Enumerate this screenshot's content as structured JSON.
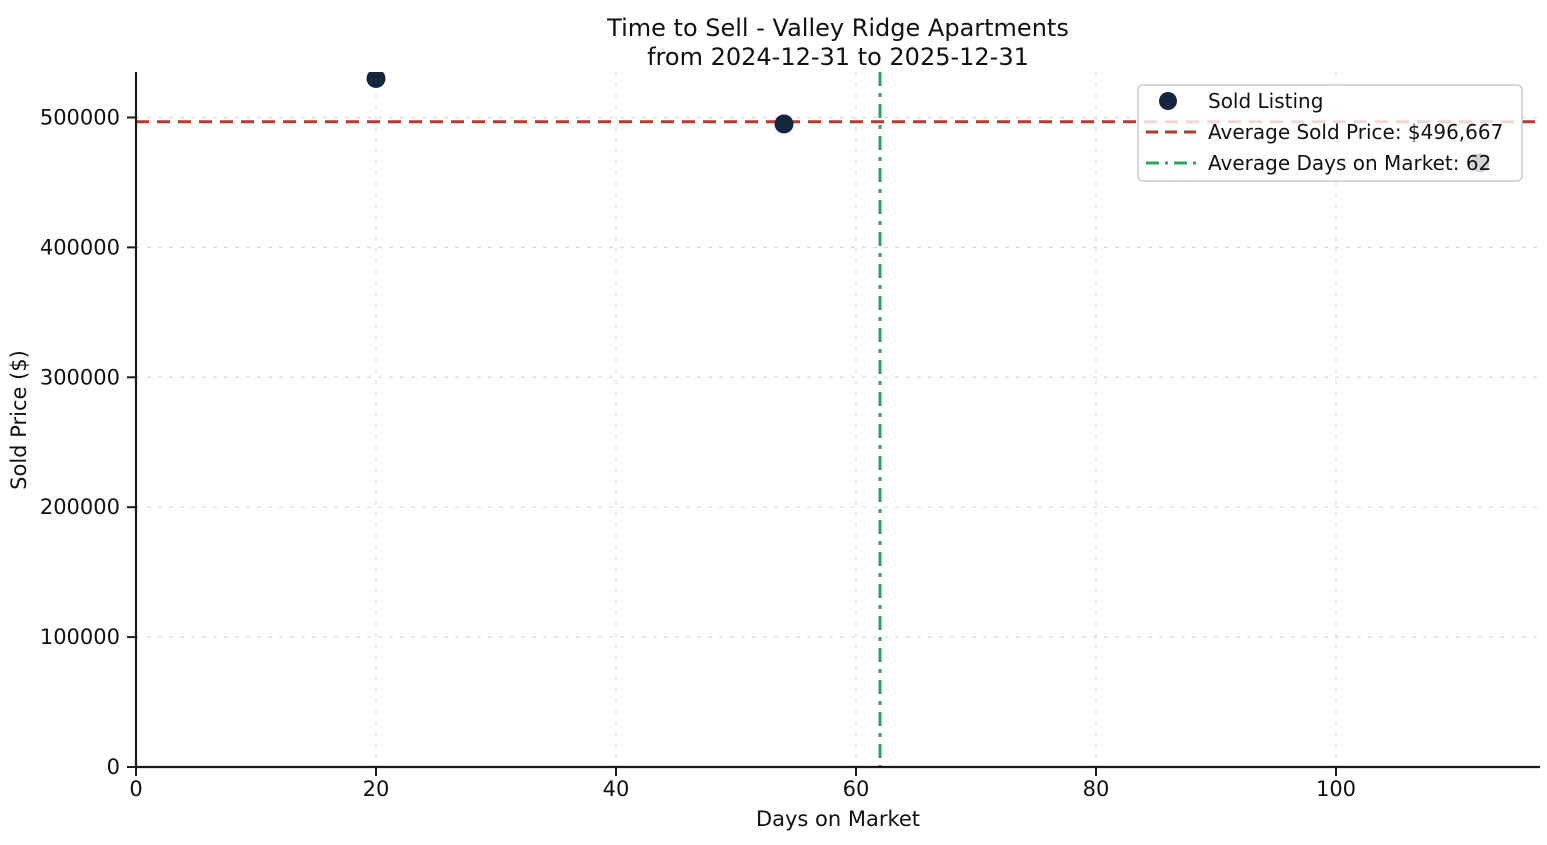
{
  "figure": {
    "title_line1": "Time to Sell - Valley Ridge Apartments",
    "title_line2": "from 2024-12-31 to 2025-12-31"
  },
  "chart_data": {
    "type": "scatter",
    "title": "Time to Sell - Valley Ridge Apartments\nfrom 2024-12-31 to 2025-12-31",
    "xlabel": "Days on Market",
    "ylabel": "Sold Price ($)",
    "xlim": [
      0,
      117
    ],
    "ylim": [
      0,
      535000
    ],
    "xticks": [
      0,
      20,
      40,
      60,
      80,
      100
    ],
    "yticks": [
      0,
      100000,
      200000,
      300000,
      400000,
      500000
    ],
    "grid": true,
    "grid_style": "dashed",
    "legend_position": "upper right",
    "scatter_series": {
      "name": "Sold Listing",
      "color": "#16253e",
      "marker": "circle",
      "points": [
        {
          "days_on_market": 20,
          "sold_price": 530000
        },
        {
          "days_on_market": 54,
          "sold_price": 495000
        },
        {
          "days_on_market": 112,
          "sold_price": 465000
        }
      ]
    },
    "reference_lines": [
      {
        "name": "Average Sold Price: $496,667",
        "orientation": "horizontal",
        "value": 496667,
        "color": "#b23a2e",
        "style": "dashed"
      },
      {
        "name": "Average Days on Market: 62",
        "orientation": "vertical",
        "value": 62,
        "color": "#2aa55f",
        "style": "dashdot"
      }
    ],
    "legend": [
      {
        "label": "Sold Listing",
        "marker": "circle",
        "color": "#16253e"
      },
      {
        "label": "Average Sold Price: $496,667",
        "marker": "dashed-line",
        "color": "#b23a2e"
      },
      {
        "label": "Average Days on Market: 62",
        "marker": "dashdot-line",
        "color": "#2aa55f"
      }
    ]
  },
  "colors": {
    "background": "#ffffff",
    "axis": "#1a1a1a",
    "grid": "#d7dcde",
    "text": "#111111",
    "legend_border": "#cccccc"
  }
}
